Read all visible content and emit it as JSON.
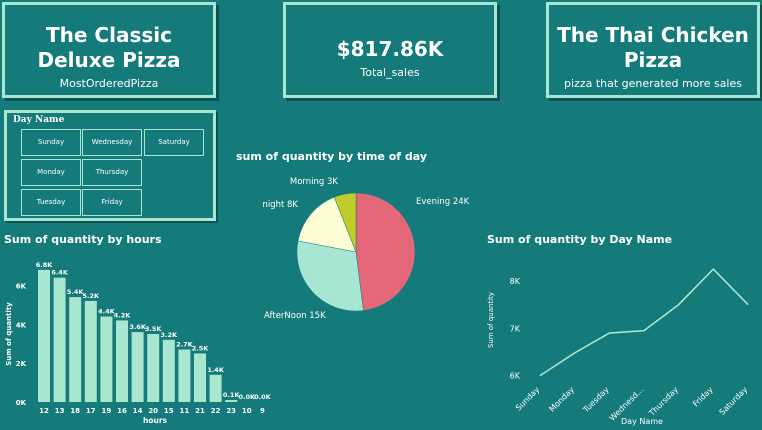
{
  "cards": [
    {
      "value": "The Classic Deluxe Pizza",
      "label": "MostOrderedPizza"
    },
    {
      "value": "$817.86K",
      "label": "Total_sales"
    },
    {
      "value": "The Thai Chicken Pizza",
      "label": "pizza that generated more sales"
    }
  ],
  "slicer": {
    "title": "Day Name",
    "options": [
      "Sunday",
      "Wednesday",
      "Saturday",
      "Monday",
      "Thursday",
      "Tuesday",
      "Friday"
    ]
  },
  "colors": {
    "background": "#147a7a",
    "bar": "#a8e6cf",
    "card_border": "#a8e6cf",
    "pie_evening": "#e4677a",
    "pie_afternoon": "#a8e6d4",
    "pie_night": "#fdfdd4",
    "pie_morning": "#bfcc2a",
    "line": "#a8e6cf"
  },
  "chart_data": [
    {
      "type": "pie",
      "title": "sum of quantity by time of day",
      "slices": [
        {
          "name": "Evening",
          "value": 24000,
          "label": "Evening 24K"
        },
        {
          "name": "AfterNoon",
          "value": 15000,
          "label": "AfterNoon 15K"
        },
        {
          "name": "night",
          "value": 8000,
          "label": "night 8K"
        },
        {
          "name": "Morning",
          "value": 3000,
          "label": "Morning 3K"
        }
      ]
    },
    {
      "type": "bar",
      "title": "Sum of quantity by hours",
      "xlabel": "hours",
      "ylabel": "Sum of quantity",
      "categories": [
        "12",
        "13",
        "18",
        "17",
        "19",
        "16",
        "14",
        "20",
        "15",
        "11",
        "21",
        "22",
        "23",
        "10",
        "9"
      ],
      "values": [
        6800,
        6400,
        5400,
        5200,
        4400,
        4200,
        3600,
        3500,
        3200,
        2700,
        2500,
        1400,
        100,
        0,
        0
      ],
      "data_labels": [
        "6.8K",
        "6.4K",
        "5.4K",
        "5.2K",
        "4.4K",
        "4.2K",
        "3.6K",
        "3.5K",
        "3.2K",
        "2.7K",
        "2.5K",
        "1.4K",
        "0.1K",
        "0.0K",
        "0.0K"
      ],
      "yticks": [
        "0K",
        "2K",
        "4K",
        "6K"
      ],
      "ylim": [
        0,
        7000
      ]
    },
    {
      "type": "line",
      "title": "Sum of quantity by Day Name",
      "xlabel": "Day Name",
      "ylabel": "Sum of quantity",
      "categories": [
        "Sunday",
        "Monday",
        "Tuesday",
        "Wednesd...",
        "Thursday",
        "Friday",
        "Saturday"
      ],
      "values": [
        6000,
        6480,
        6900,
        6950,
        7500,
        8250,
        7500
      ],
      "yticks": [
        "6K",
        "7K",
        "8K"
      ],
      "ylim": [
        5950,
        8400
      ]
    }
  ]
}
